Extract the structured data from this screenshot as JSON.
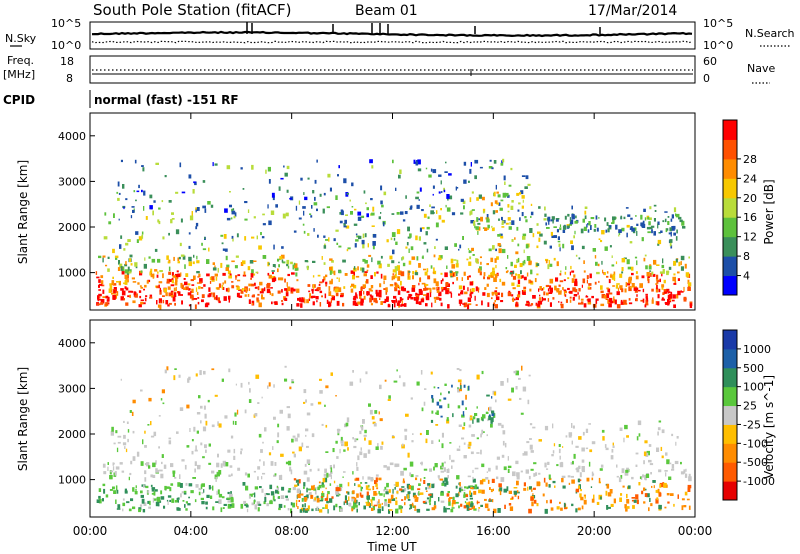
{
  "header": {
    "title": "South Pole Station (fitACF)",
    "beam": "Beam 01",
    "date": "17/Mar/2014"
  },
  "sky_panel": {
    "left_label": "N.Sky",
    "left_ticks": [
      "10^5",
      "10^0"
    ],
    "right_label": "N.Search",
    "right_ticks": [
      "10^5",
      "10^0"
    ]
  },
  "freq_panel": {
    "left_label_1": "Freq.",
    "left_label_2": "[MHz]",
    "left_ticks": [
      "18",
      "8"
    ],
    "right_label": "Nave",
    "right_ticks": [
      "60",
      "0"
    ]
  },
  "cpid_panel": {
    "label": "CPID",
    "text": "normal (fast) -151 RF"
  },
  "colors": {
    "power": [
      "#0000ff",
      "#1d4fa8",
      "#3a8f5a",
      "#5dc13c",
      "#b8dc3a",
      "#f7c800",
      "#ff8c00",
      "#ff5000",
      "#ff0000"
    ],
    "velocity": [
      "#e60000",
      "#ff5a00",
      "#ff8c00",
      "#ffbe00",
      "#c8c8c8",
      "#5ac83c",
      "#2f8f5a",
      "#1d60a8",
      "#1a3aa8"
    ]
  },
  "chart_data": [
    {
      "type": "heatmap",
      "name": "power",
      "xlabel": "",
      "ylabel": "Slant Range [km]",
      "xlim": [
        0,
        24
      ],
      "ylim": [
        180,
        4500
      ],
      "yticks": [
        1000,
        2000,
        3000,
        4000
      ],
      "colorbar": {
        "label": "Power [dB]",
        "ticks": [
          "4",
          "8",
          "12",
          "16",
          "20",
          "24",
          "28"
        ],
        "range": [
          0,
          30
        ]
      }
    },
    {
      "type": "heatmap",
      "name": "velocity",
      "xlabel": "Time UT",
      "ylabel": "Slant Range [km]",
      "xlim": [
        0,
        24
      ],
      "ylim": [
        180,
        4500
      ],
      "xticks": [
        "00:00",
        "04:00",
        "08:00",
        "12:00",
        "16:00",
        "20:00",
        "00:00"
      ],
      "yticks": [
        1000,
        2000,
        3000,
        4000
      ],
      "colorbar": {
        "label": "Velocity [m s^-1]",
        "ticks": [
          "1000",
          "500",
          "100",
          "25",
          "-25",
          "-100",
          "-500",
          "-1000"
        ]
      }
    }
  ]
}
